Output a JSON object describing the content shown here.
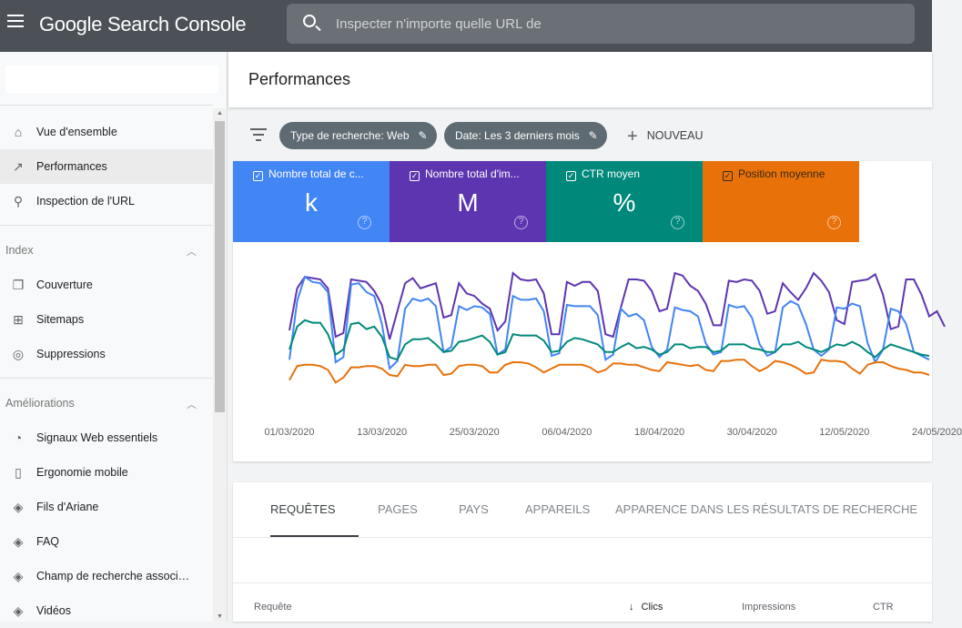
{
  "header": {
    "app_title": "Google Search Console",
    "search_placeholder": "Inspecter n'importe quelle URL de"
  },
  "sidebar": {
    "items": [
      {
        "label": "Vue d'ensemble",
        "icon": "home-icon"
      },
      {
        "label": "Performances",
        "icon": "trending-up-icon",
        "active": true
      },
      {
        "label": "Inspection de l'URL",
        "icon": "search-icon"
      }
    ],
    "index": {
      "title": "Index",
      "items": [
        {
          "label": "Couverture",
          "icon": "copy-icon"
        },
        {
          "label": "Sitemaps",
          "icon": "sitemap-icon"
        },
        {
          "label": "Suppressions",
          "icon": "eye-off-icon"
        }
      ]
    },
    "ameliorations": {
      "title": "Améliorations",
      "items": [
        {
          "label": "Signaux Web essentiels",
          "icon": "speed-icon"
        },
        {
          "label": "Ergonomie mobile",
          "icon": "phone-icon"
        },
        {
          "label": "Fils d'Ariane",
          "icon": "layers-icon"
        },
        {
          "label": "FAQ",
          "icon": "layers-icon"
        },
        {
          "label": "Champ de recherche associ…",
          "icon": "layers-icon"
        },
        {
          "label": "Vidéos",
          "icon": "layers-icon"
        }
      ]
    }
  },
  "page": {
    "title": "Performances"
  },
  "filters": {
    "type": "Type de recherche: Web",
    "date": "Date: Les 3 derniers mois",
    "new": "NOUVEAU"
  },
  "metrics": [
    {
      "label": "Nombre total de c...",
      "value": "k",
      "color": "#4285f4",
      "checked": true
    },
    {
      "label": "Nombre total d'im...",
      "value": "M",
      "color": "#5e35b1",
      "checked": true
    },
    {
      "label": "CTR moyen",
      "value": "%",
      "color": "#00897b",
      "checked": true
    },
    {
      "label": "Position moyenne",
      "value": "",
      "color": "#e8710a",
      "checked": true
    }
  ],
  "chart_data": {
    "type": "line",
    "x_tick_labels": [
      "01/03/2020",
      "13/03/2020",
      "25/03/2020",
      "06/04/2020",
      "18/04/2020",
      "30/04/2020",
      "12/05/2020",
      "24/05/2020"
    ],
    "x_start": "01/03/2020",
    "x_step_days": 1,
    "y_axis_shown": false,
    "series": [
      {
        "metric": "impressions",
        "color": "#5e35b1",
        "values": [
          55,
          88,
          97,
          96,
          95,
          88,
          50,
          53,
          95,
          94,
          93,
          86,
          75,
          48,
          70,
          92,
          96,
          88,
          90,
          92,
          65,
          67,
          92,
          84,
          82,
          76,
          72,
          55,
          62,
          100,
          95,
          94,
          95,
          84,
          52,
          52,
          93,
          90,
          93,
          93,
          86,
          52,
          50,
          73,
          95,
          95,
          94,
          86,
          70,
          72,
          100,
          98,
          90,
          86,
          76,
          59,
          59,
          94,
          93,
          95,
          94,
          86,
          68,
          70,
          92,
          85,
          79,
          88,
          100,
          94,
          85,
          63,
          60,
          93,
          94,
          95,
          99,
          83,
          56,
          58,
          95,
          95,
          83,
          66,
          70,
          58
        ]
      },
      {
        "metric": "clics",
        "color": "#4285f4",
        "values": [
          32,
          78,
          97,
          93,
          92,
          85,
          30,
          34,
          91,
          92,
          85,
          82,
          60,
          25,
          31,
          72,
          80,
          78,
          80,
          74,
          38,
          42,
          74,
          71,
          74,
          73,
          68,
          36,
          40,
          82,
          79,
          79,
          80,
          70,
          35,
          37,
          75,
          74,
          74,
          74,
          67,
          32,
          36,
          72,
          66,
          68,
          63,
          42,
          34,
          40,
          73,
          71,
          70,
          66,
          45,
          36,
          38,
          75,
          73,
          74,
          65,
          44,
          35,
          38,
          73,
          78,
          75,
          60,
          40,
          35,
          40,
          73,
          72,
          76,
          74,
          45,
          30,
          40,
          72,
          70,
          60,
          38,
          35,
          32
        ]
      },
      {
        "metric": "ctr",
        "color": "#00897b",
        "values": [
          40,
          58,
          63,
          61,
          61,
          52,
          36,
          40,
          60,
          61,
          56,
          58,
          50,
          34,
          32,
          44,
          48,
          48,
          49,
          44,
          38,
          39,
          46,
          47,
          49,
          51,
          46,
          36,
          38,
          52,
          51,
          51,
          51,
          47,
          38,
          39,
          46,
          49,
          48,
          46,
          44,
          38,
          38,
          42,
          45,
          41,
          42,
          40,
          36,
          38,
          44,
          44,
          41,
          42,
          42,
          38,
          39,
          44,
          44,
          44,
          41,
          40,
          38,
          38,
          44,
          44,
          46,
          42,
          40,
          38,
          41,
          44,
          43,
          46,
          43,
          38,
          34,
          40,
          44,
          42,
          40,
          38,
          36,
          35
        ]
      },
      {
        "metric": "position",
        "color": "#e8710a",
        "values": [
          16,
          27,
          28,
          28,
          27,
          24,
          14,
          18,
          26,
          26,
          27,
          27,
          25,
          20,
          19,
          28,
          27,
          27,
          28,
          28,
          20,
          21,
          27,
          28,
          28,
          27,
          22,
          22,
          28,
          30,
          30,
          29,
          26,
          22,
          25,
          28,
          28,
          28,
          28,
          26,
          22,
          24,
          29,
          29,
          28,
          28,
          26,
          24,
          23,
          30,
          29,
          28,
          27,
          28,
          24,
          23,
          31,
          31,
          32,
          32,
          27,
          23,
          26,
          31,
          30,
          28,
          25,
          21,
          22,
          32,
          31,
          31,
          30,
          25,
          21,
          28,
          30,
          30,
          27,
          25,
          24,
          22,
          22,
          20
        ]
      }
    ]
  },
  "tabs": [
    "REQUÊTES",
    "PAGES",
    "PAYS",
    "APPAREILS",
    "APPARENCE DANS LES RÉSULTATS DE RECHERCHE"
  ],
  "table": {
    "columns": [
      "Requête",
      "Clics",
      "Impressions",
      "CTR"
    ],
    "sort_column": "Clics",
    "sort_direction": "descending"
  }
}
